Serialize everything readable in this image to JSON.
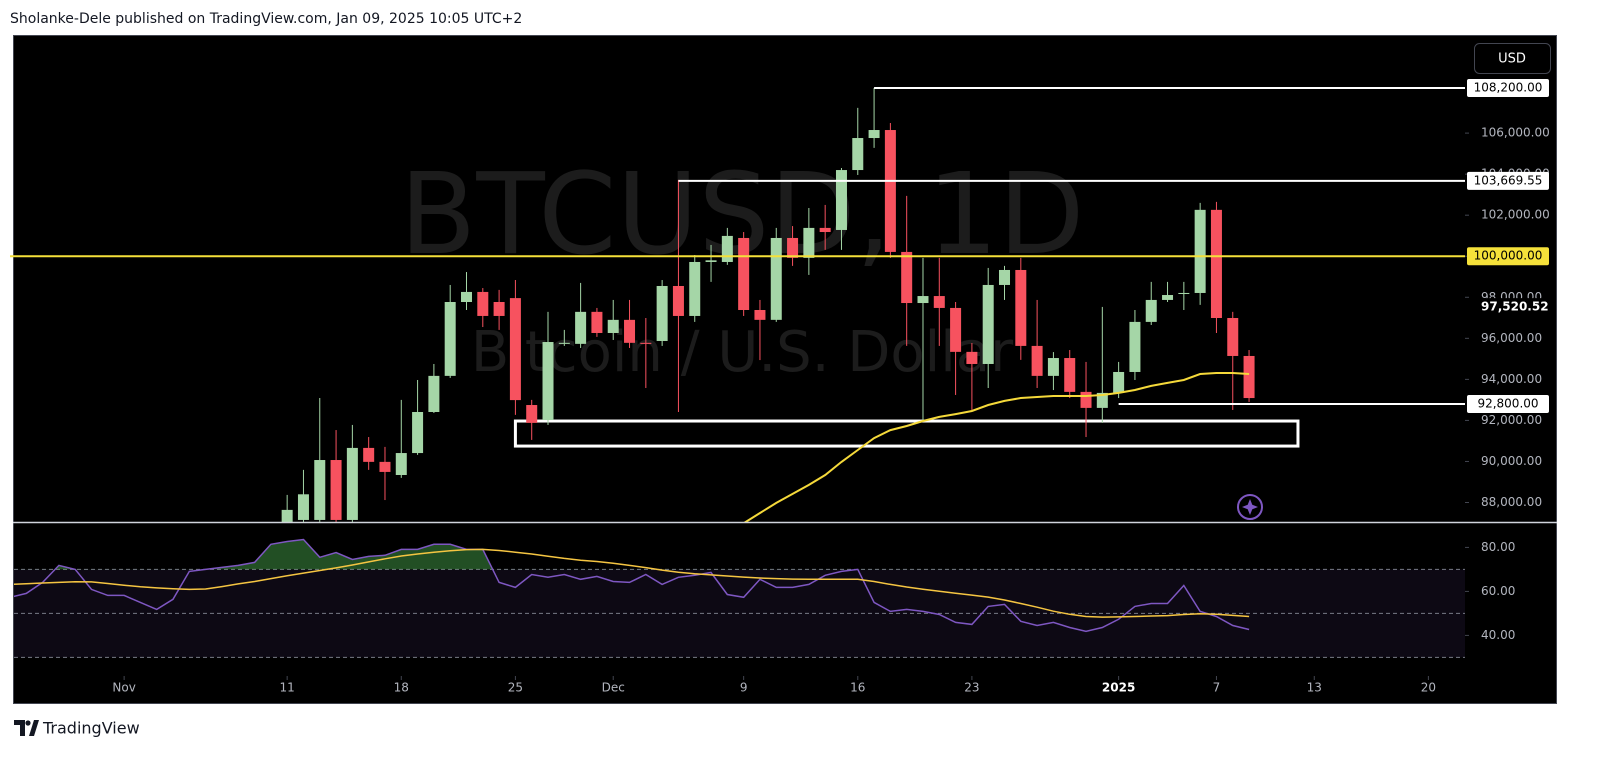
{
  "header": "Sholanke-Dele published on TradingView.com, Jan 09, 2025 10:05 UTC+2",
  "currency_button": "USD",
  "footer": "TradingView",
  "chart_data": [
    {
      "type": "candlestick",
      "watermark": "BTCUSD, 1D",
      "watermark_subtitle": "Bitcoin / U.S. Dollar",
      "x": [
        "2024-11-11",
        "2024-11-12",
        "2024-11-13",
        "2024-11-14",
        "2024-11-15",
        "2024-11-16",
        "2024-11-17",
        "2024-11-18",
        "2024-11-19",
        "2024-11-20",
        "2024-11-21",
        "2024-11-22",
        "2024-11-23",
        "2024-11-24",
        "2024-11-25",
        "2024-11-26",
        "2024-11-27",
        "2024-11-28",
        "2024-11-29",
        "2024-11-30",
        "2024-12-01",
        "2024-12-02",
        "2024-12-03",
        "2024-12-04",
        "2024-12-05",
        "2024-12-06",
        "2024-12-07",
        "2024-12-08",
        "2024-12-09",
        "2024-12-10",
        "2024-12-11",
        "2024-12-12",
        "2024-12-13",
        "2024-12-14",
        "2024-12-15",
        "2024-12-16",
        "2024-12-17",
        "2024-12-18",
        "2024-12-19",
        "2024-12-20",
        "2024-12-21",
        "2024-12-22",
        "2024-12-23",
        "2024-12-24",
        "2024-12-25",
        "2024-12-26",
        "2024-12-27",
        "2024-12-28",
        "2024-12-29",
        "2024-12-30",
        "2024-12-31",
        "2025-01-01",
        "2025-01-02",
        "2025-01-03",
        "2025-01-04",
        "2025-01-05",
        "2025-01-06",
        "2025-01-07",
        "2025-01-08",
        "2025-01-09"
      ],
      "open": [
        87050,
        87150,
        87150,
        90070,
        87150,
        90660,
        89980,
        89340,
        90410,
        92410,
        94170,
        97770,
        98260,
        97770,
        97960,
        92750,
        92020,
        95730,
        95730,
        97290,
        96260,
        96900,
        95780,
        95870,
        98550,
        97090,
        99720,
        99720,
        100890,
        97380,
        96900,
        100890,
        99920,
        101380,
        101280,
        104200,
        105760,
        106150,
        100210,
        97720,
        98060,
        97480,
        95340,
        94750,
        98600,
        99330,
        95630,
        94170,
        95040,
        93390,
        92610,
        93340,
        94360,
        96800,
        97870,
        98160,
        98210,
        102260,
        96990,
        95140
      ],
      "high": [
        88370,
        89590,
        93090,
        91530,
        91780,
        91190,
        90710,
        93000,
        93970,
        94750,
        98600,
        99230,
        98450,
        98360,
        98840,
        93000,
        97290,
        96410,
        98700,
        97480,
        97870,
        97870,
        96990,
        98840,
        103720,
        100060,
        100550,
        101380,
        101180,
        97870,
        101380,
        101470,
        102350,
        102500,
        104300,
        107230,
        108200,
        106490,
        102940,
        99920,
        99920,
        97770,
        95770,
        99430,
        99530,
        99920,
        97870,
        95330,
        95430,
        94850,
        97530,
        94850,
        97380,
        98750,
        98750,
        98750,
        102600,
        102650,
        97290,
        95430
      ],
      "low": [
        86500,
        86800,
        86800,
        86900,
        86900,
        89590,
        88120,
        89200,
        90320,
        92360,
        94070,
        97380,
        96550,
        96410,
        92270,
        91050,
        91780,
        95630,
        95530,
        96070,
        95920,
        95530,
        93580,
        95630,
        92410,
        96800,
        98750,
        99580,
        97090,
        94940,
        96800,
        99530,
        99090,
        100310,
        100310,
        103960,
        105280,
        99920,
        95630,
        92020,
        95630,
        93240,
        92510,
        93580,
        97870,
        94950,
        93580,
        93480,
        93090,
        91190,
        91880,
        93090,
        93970,
        96650,
        97770,
        97380,
        97630,
        96260,
        92510,
        92900
      ],
      "close": [
        87640,
        88400,
        90070,
        87150,
        90660,
        89980,
        89490,
        90410,
        92410,
        94170,
        97770,
        98260,
        97090,
        97090,
        92990,
        91880,
        95820,
        95780,
        97290,
        96260,
        96900,
        95780,
        95730,
        98550,
        97090,
        99720,
        99800,
        100990,
        97380,
        96900,
        100890,
        99920,
        101380,
        101180,
        104200,
        105760,
        106150,
        100210,
        97720,
        98060,
        97480,
        95340,
        94750,
        98600,
        99330,
        95630,
        94170,
        95040,
        93390,
        92610,
        93340,
        94360,
        96800,
        97870,
        98110,
        98210,
        102260,
        96990,
        95140,
        93090
      ],
      "up_color": "#a5d6a7",
      "down_color": "#f7525f",
      "overlay": {
        "color": "#f5d93a",
        "values": [
          null,
          null,
          null,
          null,
          null,
          null,
          null,
          null,
          null,
          null,
          null,
          null,
          null,
          null,
          null,
          null,
          null,
          null,
          null,
          null,
          null,
          null,
          null,
          null,
          null,
          null,
          null,
          null,
          86990,
          87490,
          87980,
          88420,
          88860,
          89340,
          89980,
          90560,
          91140,
          91530,
          91730,
          91970,
          92170,
          92310,
          92460,
          92750,
          92950,
          93090,
          93140,
          93190,
          93190,
          93190,
          93240,
          93340,
          93480,
          93680,
          93830,
          93970,
          94260,
          94310,
          94310,
          94260
        ]
      },
      "xlim": [
        "2024-10-25",
        "2025-01-22"
      ],
      "ylim": [
        87050,
        110780
      ],
      "yticks": [
        {
          "value": 88000,
          "label": "88,000.00"
        },
        {
          "value": 90000,
          "label": "90,000.00"
        },
        {
          "value": 92000,
          "label": "92,000.00"
        },
        {
          "value": 94000,
          "label": "94,000.00"
        },
        {
          "value": 96000,
          "label": "96,000.00"
        },
        {
          "value": 98000,
          "label": "98,000.00"
        },
        {
          "value": 100000,
          "label": "100,000.00"
        },
        {
          "value": 102000,
          "label": "102,000.00"
        },
        {
          "value": 104000,
          "label": "104,000.00"
        },
        {
          "value": 106000,
          "label": "106,000.00"
        }
      ],
      "levels": [
        {
          "value": 108200,
          "label": "108,200.00",
          "color": "#ffffff",
          "from": "2024-12-17",
          "boxed": true
        },
        {
          "value": 103669.55,
          "label": "103,669.55",
          "color": "#ffffff",
          "from": "2024-12-05",
          "boxed": true
        },
        {
          "value": 100000,
          "label": "100,000.00",
          "color": "#f5e13a",
          "from": "2024-10-25",
          "boxed": true
        },
        {
          "value": 97520.52,
          "label": "97,520.52",
          "color": "#ffffff",
          "boxed": false
        },
        {
          "value": 92800,
          "label": "92,800.00",
          "color": "#ffffff",
          "from": "2025-01-01",
          "boxed": true
        }
      ],
      "zone": {
        "top": 91970,
        "bottom": 90750,
        "from": "2024-11-25",
        "to": "2025-01-12",
        "color": "#ffffff"
      }
    },
    {
      "type": "line",
      "x": [
        "2024-10-25",
        "2024-10-26",
        "2024-10-27",
        "2024-10-28",
        "2024-10-29",
        "2024-10-30",
        "2024-10-31",
        "2024-11-01",
        "2024-11-02",
        "2024-11-03",
        "2024-11-04",
        "2024-11-05",
        "2024-11-06",
        "2024-11-07",
        "2024-11-08",
        "2024-11-09",
        "2024-11-10",
        "2024-11-11",
        "2024-11-12",
        "2024-11-13",
        "2024-11-14",
        "2024-11-15",
        "2024-11-16",
        "2024-11-17",
        "2024-11-18",
        "2024-11-19",
        "2024-11-20",
        "2024-11-21",
        "2024-11-22",
        "2024-11-23",
        "2024-11-24",
        "2024-11-25",
        "2024-11-26",
        "2024-11-27",
        "2024-11-28",
        "2024-11-29",
        "2024-11-30",
        "2024-12-01",
        "2024-12-02",
        "2024-12-03",
        "2024-12-04",
        "2024-12-05",
        "2024-12-06",
        "2024-12-07",
        "2024-12-08",
        "2024-12-09",
        "2024-12-10",
        "2024-12-11",
        "2024-12-12",
        "2024-12-13",
        "2024-12-14",
        "2024-12-15",
        "2024-12-16",
        "2024-12-17",
        "2024-12-18",
        "2024-12-19",
        "2024-12-20",
        "2024-12-21",
        "2024-12-22",
        "2024-12-23",
        "2024-12-24",
        "2024-12-25",
        "2024-12-26",
        "2024-12-27",
        "2024-12-28",
        "2024-12-29",
        "2024-12-30",
        "2024-12-31",
        "2025-01-01",
        "2025-01-02",
        "2025-01-03",
        "2025-01-04",
        "2025-01-05",
        "2025-01-06",
        "2025-01-07",
        "2025-01-08",
        "2025-01-09"
      ],
      "series": [
        {
          "color": "#7e57c2",
          "values": [
            57.3,
            59.1,
            64.1,
            71.8,
            70.0,
            60.9,
            58.2,
            58.2,
            55.0,
            51.8,
            56.4,
            69.1,
            70.0,
            70.9,
            71.8,
            73.2,
            81.4,
            82.7,
            83.6,
            75.5,
            77.7,
            74.5,
            75.9,
            76.4,
            79.1,
            79.1,
            81.4,
            81.4,
            79.1,
            79.1,
            64.1,
            61.8,
            67.7,
            66.4,
            67.7,
            65.5,
            66.8,
            64.5,
            64.1,
            67.7,
            63.2,
            66.4,
            67.3,
            68.6,
            58.6,
            57.3,
            65.5,
            61.8,
            61.8,
            63.2,
            67.3,
            69.1,
            70.0,
            55.0,
            50.9,
            51.8,
            50.9,
            49.5,
            45.9,
            45.0,
            53.2,
            54.1,
            46.4,
            44.5,
            45.9,
            43.6,
            41.8,
            43.6,
            47.3,
            53.2,
            54.5,
            54.5,
            62.7,
            50.9,
            48.6,
            44.5,
            42.7
          ]
        },
        {
          "color": "#f5c542",
          "values": [
            63.2,
            63.5,
            63.8,
            64.1,
            64.4,
            64.3,
            63.6,
            62.8,
            62.1,
            61.6,
            61.2,
            60.9,
            61.1,
            62.2,
            63.4,
            64.5,
            65.8,
            67.1,
            68.3,
            69.5,
            70.7,
            72.0,
            73.4,
            74.8,
            76.1,
            77.0,
            77.8,
            78.5,
            79.0,
            79.1,
            78.6,
            77.8,
            77.0,
            76.0,
            75.0,
            74.2,
            73.6,
            72.8,
            71.8,
            70.8,
            69.7,
            68.7,
            68.0,
            67.5,
            67.0,
            66.5,
            66.1,
            65.8,
            65.6,
            65.5,
            65.5,
            65.5,
            65.5,
            64.5,
            63.2,
            62.0,
            61.0,
            60.1,
            59.2,
            58.3,
            57.4,
            56.1,
            54.5,
            52.8,
            51.0,
            49.6,
            48.6,
            48.3,
            48.4,
            48.6,
            48.8,
            49.0,
            49.5,
            49.8,
            49.6,
            49.1,
            48.6
          ]
        }
      ],
      "xlim": [
        "2024-10-25",
        "2025-01-22"
      ],
      "ylim": [
        22,
        90
      ],
      "yticks": [
        {
          "value": 40,
          "label": "40.00"
        },
        {
          "value": 60,
          "label": "60.00"
        },
        {
          "value": 80,
          "label": "80.00"
        }
      ],
      "hlines": [
        30,
        50,
        70
      ],
      "band_color": "#7e57c2",
      "overbought_color": "#4caf50",
      "xticks": [
        {
          "value": "2024-11-01",
          "label": "Nov"
        },
        {
          "value": "2024-11-11",
          "label": "11"
        },
        {
          "value": "2024-11-18",
          "label": "18"
        },
        {
          "value": "2024-11-25",
          "label": "25"
        },
        {
          "value": "2024-12-01",
          "label": "Dec"
        },
        {
          "value": "2024-12-09",
          "label": "9"
        },
        {
          "value": "2024-12-16",
          "label": "16"
        },
        {
          "value": "2024-12-23",
          "label": "23"
        },
        {
          "value": "2025-01-01",
          "label": "2025"
        },
        {
          "value": "2025-01-07",
          "label": "7"
        },
        {
          "value": "2025-01-13",
          "label": "13"
        },
        {
          "value": "2025-01-20",
          "label": "20"
        }
      ]
    }
  ]
}
